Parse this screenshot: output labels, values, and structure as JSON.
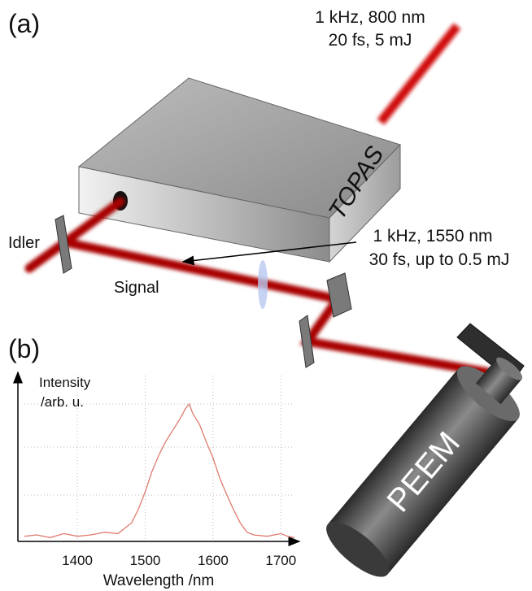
{
  "labels": {
    "panel_a": "(a)",
    "pump_line1": "1 kHz, 800 nm",
    "pump_line2": "20 fs, 5 mJ",
    "topas": "TOPAS",
    "output_line1": "1 kHz, 1550 nm",
    "output_line2": "30 fs, up to 0.5 mJ",
    "idler": "Idler",
    "signal": "Signal",
    "panel_b": "(b)",
    "peem": "PEEM"
  },
  "spectrum": {
    "type": "line",
    "ylabel_line1": "Intensity",
    "ylabel_line2": "/arb. u.",
    "xlabel": "Wavelength /nm",
    "color": "#e07b6f",
    "x": [
      1322,
      1340,
      1360,
      1380,
      1400,
      1420,
      1440,
      1460,
      1480,
      1490,
      1500,
      1510,
      1520,
      1530,
      1540,
      1550,
      1560,
      1565,
      1570,
      1580,
      1590,
      1600,
      1610,
      1620,
      1630,
      1640,
      1650,
      1660,
      1680,
      1700,
      1710,
      1720
    ],
    "values": [
      0.02,
      0.03,
      0.01,
      0.04,
      0.02,
      0.03,
      0.05,
      0.04,
      0.12,
      0.22,
      0.35,
      0.5,
      0.62,
      0.72,
      0.8,
      0.88,
      0.97,
      1.0,
      0.93,
      0.85,
      0.72,
      0.6,
      0.45,
      0.33,
      0.22,
      0.12,
      0.05,
      0.03,
      0.02,
      0.04,
      0.02,
      0.01
    ],
    "xlim": [
      1322,
      1720
    ],
    "xticks": [
      1400,
      1500,
      1600,
      1700
    ]
  }
}
